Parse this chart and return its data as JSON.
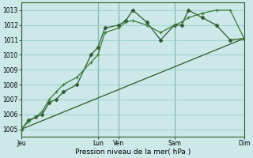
{
  "xlabel": "Pression niveau de la mer( hPa )",
  "bg_color": "#cce8e8",
  "grid_color": "#99cccc",
  "line_color_dark": "#2d5a2d",
  "line_color_med": "#3a7a3a",
  "ylim": [
    1004.5,
    1013.5
  ],
  "yticks": [
    1005,
    1006,
    1007,
    1008,
    1009,
    1010,
    1011,
    1012,
    1013
  ],
  "xlim": [
    0,
    16
  ],
  "xtick_labels": [
    "Jeu",
    "Lun",
    "Ven",
    "Sam",
    "Dim"
  ],
  "xtick_positions": [
    0,
    5.5,
    7,
    11,
    16
  ],
  "vline_positions": [
    0,
    5.5,
    7,
    11,
    16
  ],
  "series1_x": [
    0,
    0.5,
    1.0,
    1.5,
    2.0,
    2.5,
    3.0,
    4.0,
    5.0,
    5.5,
    6.0,
    7.0,
    7.5,
    8.0,
    9.0,
    10.0,
    11.0,
    11.5,
    12.0,
    13.0,
    14.0,
    15.0,
    16.0
  ],
  "series1_y": [
    1005.0,
    1005.6,
    1005.8,
    1006.0,
    1006.8,
    1007.0,
    1007.5,
    1008.0,
    1010.0,
    1010.5,
    1011.8,
    1012.0,
    1012.3,
    1013.0,
    1012.2,
    1011.0,
    1012.0,
    1012.0,
    1013.0,
    1012.5,
    1012.0,
    1011.0,
    1011.1
  ],
  "series2_x": [
    0,
    0.5,
    1.0,
    1.5,
    2.0,
    2.5,
    3.0,
    4.0,
    5.0,
    5.5,
    6.0,
    7.0,
    7.5,
    8.0,
    9.0,
    10.0,
    11.0,
    11.5,
    12.0,
    13.0,
    14.0,
    15.0,
    16.0
  ],
  "series2_y": [
    1005.0,
    1005.5,
    1005.8,
    1006.2,
    1007.0,
    1007.5,
    1008.0,
    1008.5,
    1009.5,
    1010.0,
    1011.5,
    1011.8,
    1012.2,
    1012.3,
    1012.0,
    1011.5,
    1012.0,
    1012.2,
    1012.5,
    1012.8,
    1013.0,
    1013.0,
    1011.1
  ],
  "series3_x": [
    0,
    16
  ],
  "series3_y": [
    1005.0,
    1011.1
  ]
}
